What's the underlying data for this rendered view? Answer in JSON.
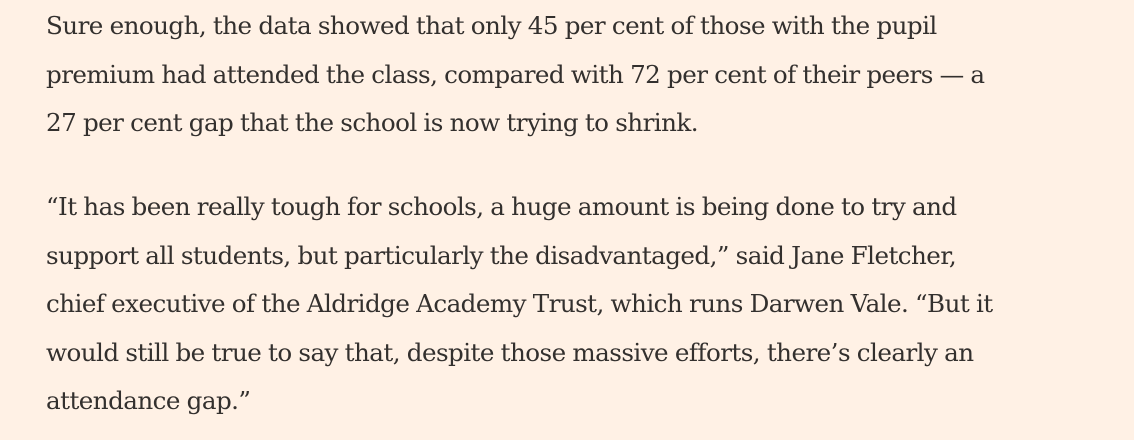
{
  "article": {
    "paragraphs": [
      {
        "lines": [
          "Sure enough, the data showed that only 45 per cent of those with the pupil",
          "premium had attended the class, compared with 72 per cent of their peers — a",
          "27 per cent gap that the school is now trying to shrink."
        ]
      },
      {
        "lines": [
          "“It has been really tough for schools, a huge amount is being done to try and",
          "support all students, but particularly the disadvantaged,” said Jane Fletcher,",
          "chief executive of the Aldridge Academy Trust, which runs Darwen Vale. “But it",
          "would still be true to say that, despite those massive efforts, there’s clearly an",
          "attendance gap.”"
        ]
      }
    ]
  },
  "colors": {
    "background": "#fff1e5",
    "text": "#33302e"
  }
}
